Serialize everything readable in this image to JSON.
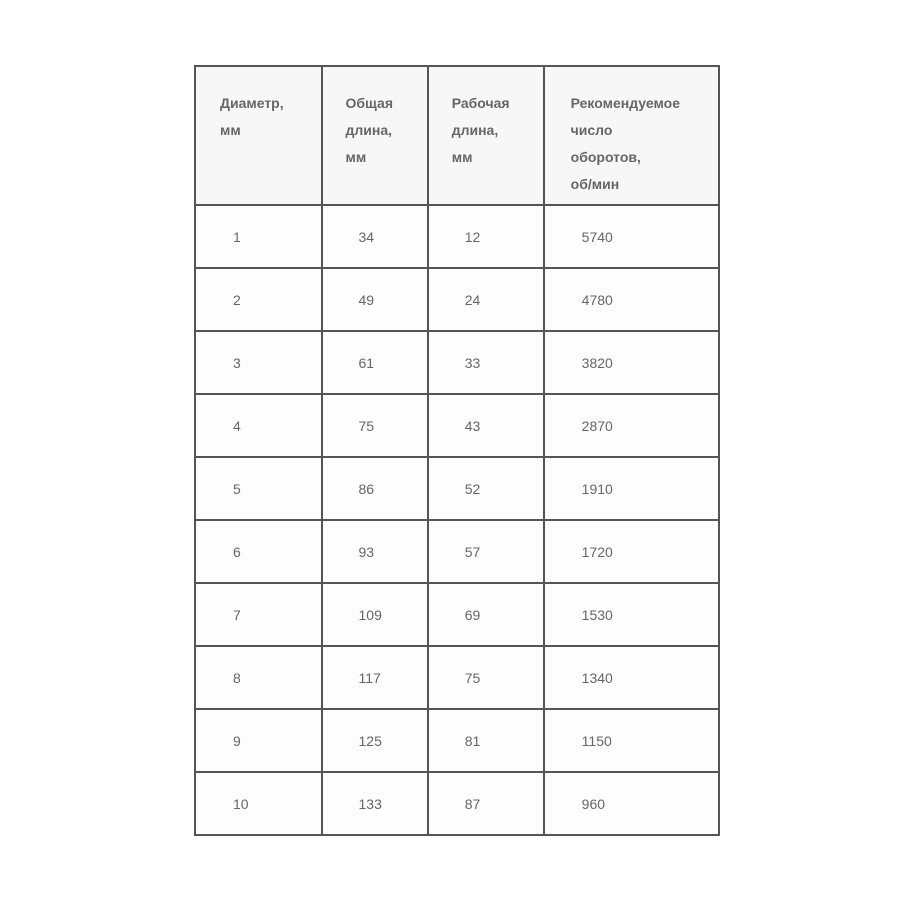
{
  "table": {
    "headers": [
      [
        "Диаметр,",
        "мм"
      ],
      [
        "Общая",
        "длина,",
        "мм"
      ],
      [
        "Рабочая",
        "длина,",
        "мм"
      ],
      [
        "Рекомендуемое",
        "число",
        "оборотов,",
        "об/мин"
      ]
    ],
    "rows": [
      [
        "1",
        "34",
        "12",
        "5740"
      ],
      [
        "2",
        "49",
        "24",
        "4780"
      ],
      [
        "3",
        "61",
        "33",
        "3820"
      ],
      [
        "4",
        "75",
        "43",
        "2870"
      ],
      [
        "5",
        "86",
        "52",
        "1910"
      ],
      [
        "6",
        "93",
        "57",
        "1720"
      ],
      [
        "7",
        "109",
        "69",
        "1530"
      ],
      [
        "8",
        "117",
        "75",
        "1340"
      ],
      [
        "9",
        "125",
        "81",
        "1150"
      ],
      [
        "10",
        "133",
        "87",
        "960"
      ]
    ]
  }
}
